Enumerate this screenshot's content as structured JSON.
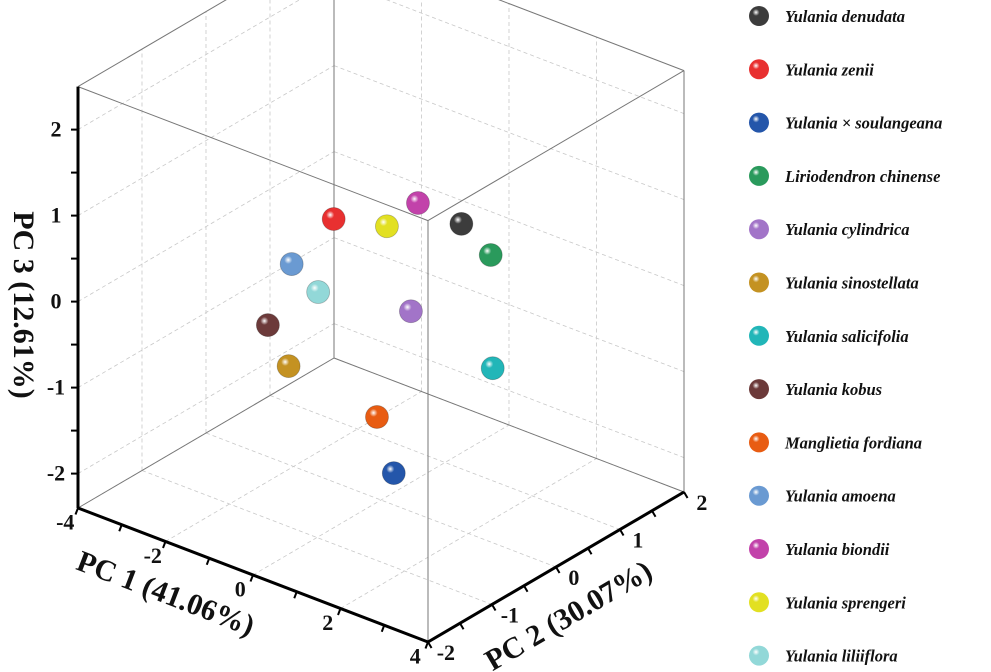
{
  "chart_data": {
    "type": "scatter",
    "projection": "3d",
    "title": "",
    "xlabel": "PC 1 (41.06%)",
    "ylabel": "PC 2 (30.07%)",
    "zlabel": "PC 3 (12.61%)",
    "xlim": [
      -4,
      4
    ],
    "ylim": [
      -2,
      2
    ],
    "zlim": [
      -2.4,
      2.5
    ],
    "xticks": [
      "-4",
      "-2",
      "0",
      "2",
      "4"
    ],
    "xtick_values": [
      -4,
      -2,
      0,
      2,
      4
    ],
    "yticks": [
      "-2",
      "-1",
      "0",
      "1",
      "2"
    ],
    "ytick_values": [
      -2,
      -1,
      0,
      1,
      2
    ],
    "zticks": [
      "-2",
      "-1",
      "0",
      "1",
      "2"
    ],
    "ztick_values": [
      -2,
      -1,
      0,
      1,
      2
    ],
    "grid": true,
    "legend_position": "right",
    "series": [
      {
        "name": "Yulania denudata",
        "color": "#3c3c3c",
        "x": 2.51,
        "y": -0.46,
        "z": 1.5
      },
      {
        "name": "Yulania zenii",
        "color": "#e83030",
        "x": 0.63,
        "y": -1.17,
        "z": 1.5
      },
      {
        "name": "Yulania × soulangeana",
        "color": "#2456aa",
        "x": 0.76,
        "y": -0.32,
        "z": -1.8
      },
      {
        "name": "Liriodendron chinense",
        "color": "#2a9a5c",
        "x": 2.23,
        "y": 0.19,
        "z": 0.8
      },
      {
        "name": "Yulania cylindrica",
        "color": "#a274c8",
        "x": 0.83,
        "y": -0.1,
        "z": 0.0
      },
      {
        "name": "Yulania sinostellata",
        "color": "#c49222",
        "x": -1.19,
        "y": -0.63,
        "z": -0.8
      },
      {
        "name": "Yulania salicifolia",
        "color": "#22b6b8",
        "x": 2.29,
        "y": 0.18,
        "z": -0.5
      },
      {
        "name": "Yulania kobus",
        "color": "#6c3a3a",
        "x": -1.43,
        "y": -0.79,
        "z": -0.3
      },
      {
        "name": "Manglietia fordiana",
        "color": "#e85c12",
        "x": 0.42,
        "y": -0.35,
        "z": -1.2
      },
      {
        "name": "Yulania amoena",
        "color": "#6a9ad2",
        "x": -1.12,
        "y": -0.63,
        "z": 0.4
      },
      {
        "name": "Yulania biondii",
        "color": "#c242aa",
        "x": 1.62,
        "y": -0.53,
        "z": 1.6
      },
      {
        "name": "Yulania sprengeri",
        "color": "#e2e022",
        "x": 1.13,
        "y": -0.68,
        "z": 1.3
      },
      {
        "name": "Yulania liliiflora",
        "color": "#92d8d8",
        "x": -0.5,
        "y": -0.64,
        "z": 0.2
      }
    ]
  }
}
